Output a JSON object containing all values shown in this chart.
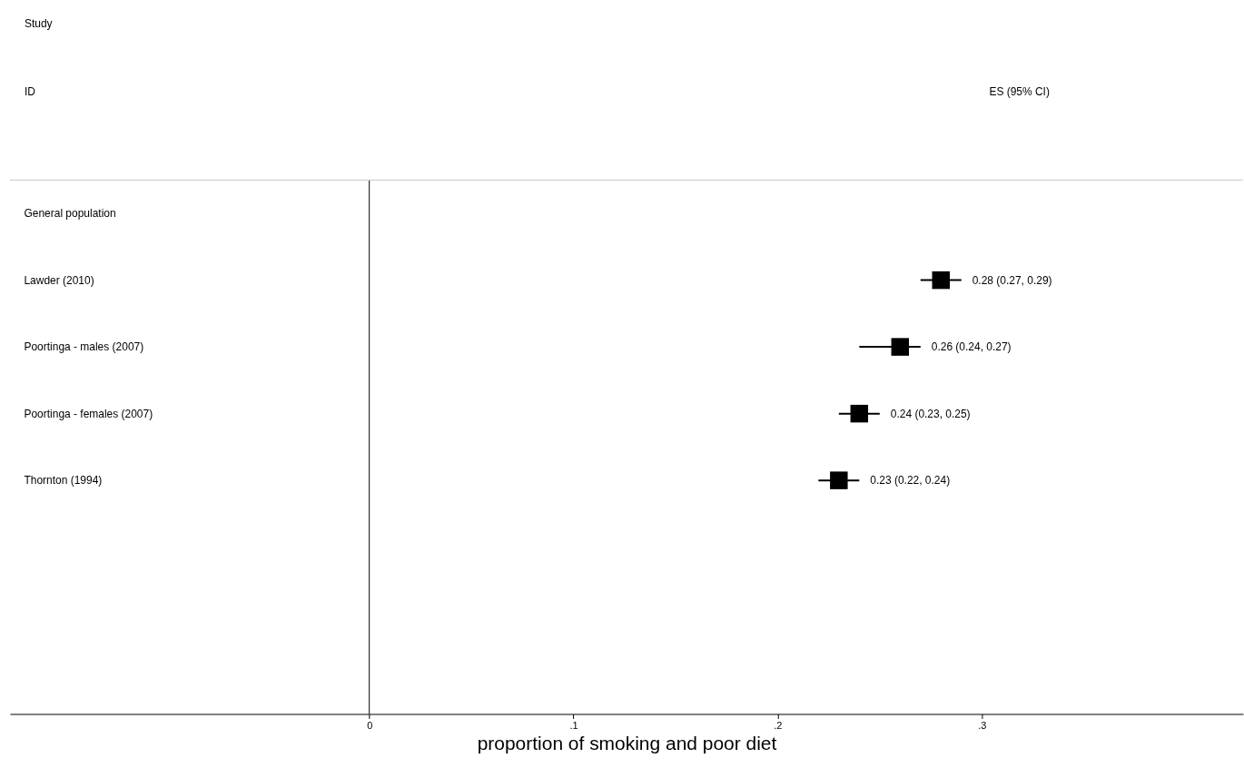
{
  "chart_data": {
    "type": "scatter",
    "orientation": "horizontal",
    "xlabel": "proportion of smoking and poor diet",
    "annotations": [
      "Study",
      "ID",
      "ES (95% CI)"
    ],
    "categories": [
      "General population",
      "Lawder (2010)",
      "Poortinga - males (2007)",
      "Poortinga - females (2007)",
      "Thornton (1994)",
      null,
      null,
      null
    ],
    "values": [
      null,
      0.28,
      0.26,
      0.24,
      0.23,
      null,
      null,
      null
    ],
    "errors": [
      null,
      [
        0.27,
        0.29
      ],
      [
        0.24,
        0.27
      ],
      [
        0.23,
        0.25
      ],
      [
        0.22,
        0.24
      ],
      null,
      null,
      null
    ],
    "value_labels": [
      null,
      "0.28 (0.27, 0.29)",
      "0.26 (0.24, 0.27)",
      "0.24 (0.23, 0.25)",
      "0.23 (0.22, 0.24)",
      null,
      null,
      null
    ],
    "color": "#000000",
    "marker": "square",
    "xlim": [
      -0.176,
      0.428
    ],
    "xticks": [
      0,
      {
        "value": 0.1,
        "label": ".1"
      },
      {
        "value": 0.2,
        "label": ".2"
      },
      {
        "value": 0.3,
        "label": ".3"
      }
    ],
    "ref_lines": [
      {
        "axis": "x",
        "value": 0,
        "color": "#000000"
      }
    ],
    "grid": false
  }
}
